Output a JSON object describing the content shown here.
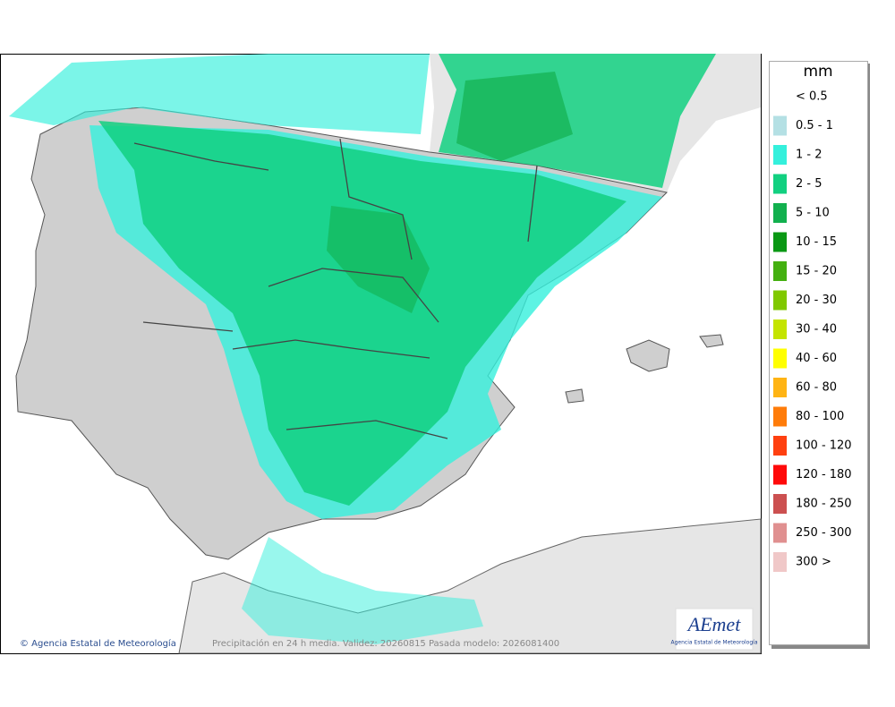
{
  "legend": {
    "unit": "mm",
    "items": [
      {
        "label": "< 0.5",
        "color": "#ffffff"
      },
      {
        "label": "0.5 - 1",
        "color": "#b4e0e4"
      },
      {
        "label": "1 - 2",
        "color": "#34f0dc"
      },
      {
        "label": "2 - 5",
        "color": "#12d080"
      },
      {
        "label": "5 - 10",
        "color": "#12b04e"
      },
      {
        "label": "10 - 15",
        "color": "#0a9814"
      },
      {
        "label": "15 - 20",
        "color": "#44b010"
      },
      {
        "label": "20 - 30",
        "color": "#80c800"
      },
      {
        "label": "30 - 40",
        "color": "#c4e400"
      },
      {
        "label": "40 - 60",
        "color": "#ffff00"
      },
      {
        "label": "60 - 80",
        "color": "#ffb414"
      },
      {
        "label": "80 - 100",
        "color": "#ff7c0a"
      },
      {
        "label": "100 - 120",
        "color": "#ff4010"
      },
      {
        "label": "120 - 180",
        "color": "#ff0a0a"
      },
      {
        "label": "180 - 250",
        "color": "#cc5050"
      },
      {
        "label": "250 - 300",
        "color": "#e09090"
      },
      {
        "label": "300 >",
        "color": "#f0c8c8"
      }
    ]
  },
  "footer": {
    "copyright": "© Agencia Estatal de Meteorología",
    "model_info": "Precipitación en 24 h media. Validez: 20260815 Pasada modelo: 2026081400"
  },
  "logo": {
    "name": "AEmet",
    "subtitle": "Agencia Estatal de Meteorología"
  }
}
